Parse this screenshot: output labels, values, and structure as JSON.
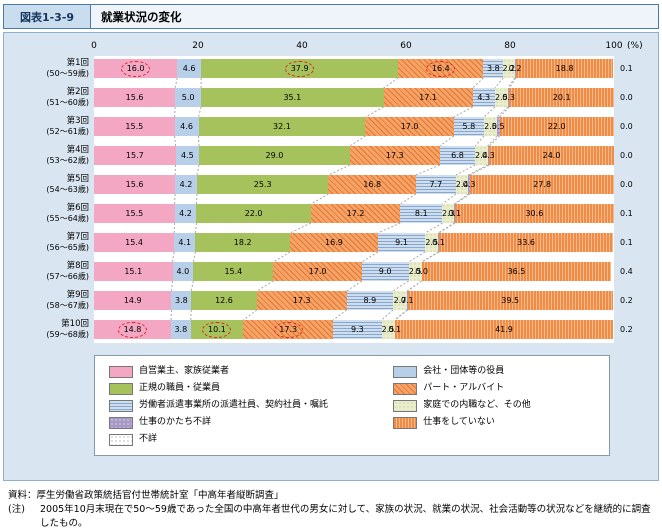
{
  "header": {
    "figure_label": "図表1-3-9",
    "title": "就業状況の変化"
  },
  "chart_data": {
    "type": "bar",
    "orientation": "horizontal",
    "stacked": true,
    "x_ticks": [
      "0",
      "20",
      "40",
      "60",
      "80",
      "100"
    ],
    "x_unit": "(%)",
    "xlim": [
      0,
      100
    ],
    "highlight_color": "#dd2222",
    "series": [
      {
        "name": "自営業主、家族従業者",
        "color": "#f4a7c3",
        "accent": "#f4a7c3",
        "pattern": "solid"
      },
      {
        "name": "会社・団体等の役員",
        "color": "#b7cfe8",
        "accent": "#b7cfe8",
        "pattern": "solid"
      },
      {
        "name": "正規の職員・従業員",
        "color": "#a6c25c",
        "accent": "#a6c25c",
        "pattern": "solid"
      },
      {
        "name": "パート・アルバイト",
        "color": "#f5a369",
        "accent": "#e2782e",
        "pattern": "diagonal"
      },
      {
        "name": "労働者派遣事業所の派遣社員、契約社員・嘱託",
        "color": "#cfdeee",
        "accent": "#87a8cc",
        "pattern": "hlines"
      },
      {
        "name": "家庭での内職など、その他",
        "color": "#e9edcc",
        "accent": "#b5c18a",
        "pattern": "dots"
      },
      {
        "name": "仕事のかたち不詳",
        "color": "#a79ac8",
        "accent": "#ffffff",
        "pattern": "dots"
      },
      {
        "name": "仕事をしていない",
        "color": "#ef8c46",
        "accent": "#f7b98c",
        "pattern": "vlines"
      },
      {
        "name": "不詳",
        "color": "#ffffff",
        "accent": "#888888",
        "pattern": "dots"
      }
    ],
    "rows": [
      {
        "label": "第1回",
        "age_range": "(50〜59歳)",
        "values": [
          16.0,
          4.6,
          37.9,
          16.4,
          3.8,
          2.2,
          0.2,
          18.8
        ],
        "unknown": "0.1"
      },
      {
        "label": "第2回",
        "age_range": "(51〜60歳)",
        "values": [
          15.6,
          5.0,
          35.1,
          17.1,
          4.3,
          2.5,
          0.3,
          20.1
        ],
        "unknown": "0.0"
      },
      {
        "label": "第3回",
        "age_range": "(52〜61歳)",
        "values": [
          15.5,
          4.6,
          32.1,
          17.0,
          5.8,
          2.5,
          0.5,
          22.0
        ],
        "unknown": "0.0"
      },
      {
        "label": "第4回",
        "age_range": "(53〜62歳)",
        "values": [
          15.7,
          4.5,
          29.0,
          17.3,
          6.8,
          2.4,
          0.3,
          24.0
        ],
        "unknown": "0.0"
      },
      {
        "label": "第5回",
        "age_range": "(54〜63歳)",
        "values": [
          15.6,
          4.2,
          25.3,
          16.8,
          7.7,
          2.4,
          0.3,
          27.8
        ],
        "unknown": "0.0"
      },
      {
        "label": "第6回",
        "age_range": "(55〜64歳)",
        "values": [
          15.5,
          4.2,
          22.0,
          17.2,
          8.1,
          2.3,
          0.1,
          30.6
        ],
        "unknown": "0.1"
      },
      {
        "label": "第7回",
        "age_range": "(56〜65歳)",
        "values": [
          15.4,
          4.1,
          18.2,
          16.9,
          9.1,
          2.5,
          0.1,
          33.6
        ],
        "unknown": "0.1"
      },
      {
        "label": "第8回",
        "age_range": "(57〜66歳)",
        "values": [
          15.1,
          4.0,
          15.4,
          17.0,
          9.0,
          2.5,
          0.0,
          36.5
        ],
        "unknown": "0.4"
      },
      {
        "label": "第9回",
        "age_range": "(58〜67歳)",
        "values": [
          14.9,
          3.8,
          12.6,
          17.3,
          8.9,
          2.7,
          0.1,
          39.5
        ],
        "unknown": "0.2"
      },
      {
        "label": "第10回",
        "age_range": "(59〜68歳)",
        "values": [
          14.8,
          3.8,
          10.1,
          17.3,
          9.3,
          2.5,
          0.1,
          41.9
        ],
        "unknown": "0.2"
      }
    ],
    "highlights": [
      {
        "row": 0,
        "segment": 0
      },
      {
        "row": 0,
        "segment": 2
      },
      {
        "row": 0,
        "segment": 3
      },
      {
        "row": 9,
        "segment": 0
      },
      {
        "row": 9,
        "segment": 2
      },
      {
        "row": 9,
        "segment": 3
      }
    ]
  },
  "footer": {
    "source": "資料：厚生労働省政策統括官付世帯統計室「中高年者縦断調査」",
    "note_label": "(注)",
    "note_text": "2005年10月末現在で50〜59歳であった全国の中高年者世代の男女に対して、家族の状況、就業の状況、社会活動等の状況などを継続的に調査したもの。"
  }
}
